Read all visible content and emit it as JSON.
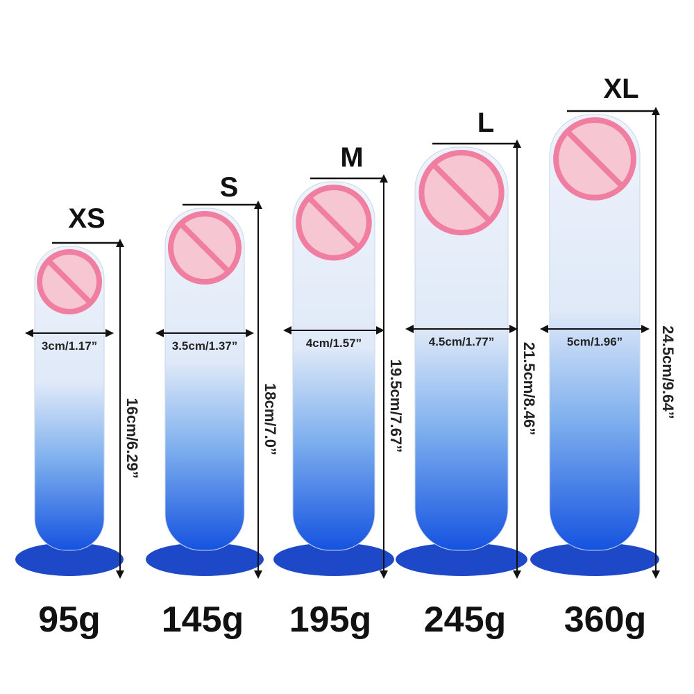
{
  "items": [
    {
      "size": "XS",
      "diameter": "3cm/1.17”",
      "length": "16cm/6.29”",
      "weight": "95g"
    },
    {
      "size": "S",
      "diameter": "3.5cm/1.37”",
      "length": "18cm/7.0”",
      "weight": "145g"
    },
    {
      "size": "M",
      "diameter": "4cm/1.57”",
      "length": "19.5cm/7.67”",
      "weight": "195g"
    },
    {
      "size": "L",
      "diameter": "4.5cm/1.77”",
      "length": "21.5cm/8.46”",
      "weight": "245g"
    },
    {
      "size": "XL",
      "diameter": "5cm/1.96”",
      "length": "24.5cm/9.64”",
      "weight": "360g"
    }
  ]
}
